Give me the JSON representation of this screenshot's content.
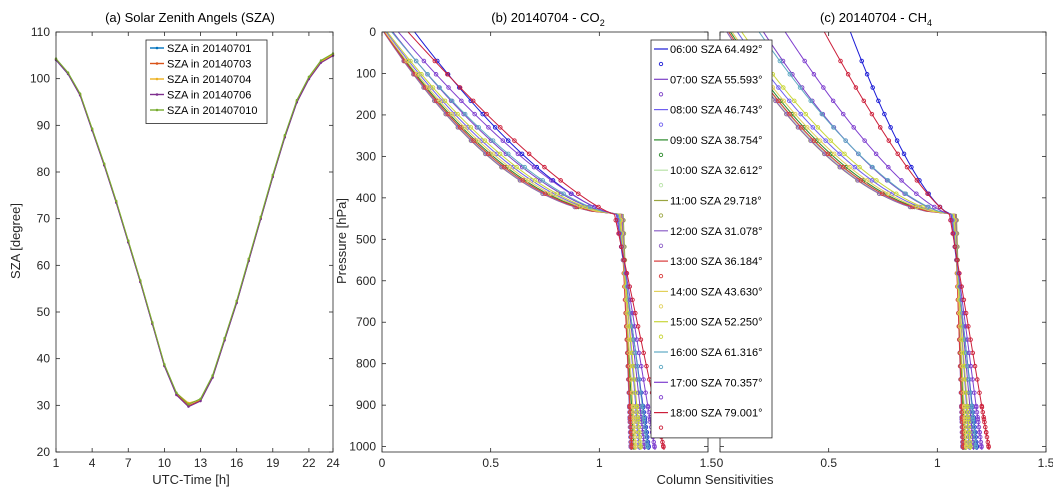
{
  "chart_data": [
    {
      "type": "line",
      "title": "(a) Solar Zenith Angels (SZA)",
      "xlabel": "UTC-Time [h]",
      "ylabel": "SZA [degree]",
      "xlim": [
        1,
        24
      ],
      "ylim": [
        20,
        110
      ],
      "xticks": [
        1,
        4,
        7,
        10,
        13,
        16,
        19,
        22,
        24
      ],
      "yticks": [
        20,
        30,
        40,
        50,
        60,
        70,
        80,
        90,
        100,
        110
      ],
      "legend_position": "top-right",
      "x": [
        1,
        2,
        3,
        4,
        5,
        6,
        7,
        8,
        9,
        10,
        11,
        12,
        13,
        14,
        15,
        16,
        17,
        18,
        19,
        20,
        21,
        22,
        23,
        24
      ],
      "series": [
        {
          "name": "SZA in 20140701",
          "color": "#0072bd",
          "values": [
            104.0,
            101.0,
            96.5,
            89.0,
            81.5,
            73.5,
            65.0,
            56.5,
            47.5,
            38.5,
            32.3,
            29.8,
            31.0,
            36.0,
            44.0,
            52.0,
            61.0,
            70.0,
            79.0,
            87.5,
            95.0,
            100.0,
            103.5,
            105.0
          ]
        },
        {
          "name": "SZA in 20140703",
          "color": "#d95319",
          "values": [
            104.1,
            101.1,
            96.6,
            89.1,
            81.6,
            73.6,
            65.1,
            56.6,
            47.6,
            38.6,
            32.4,
            29.9,
            31.1,
            36.1,
            44.1,
            52.1,
            61.1,
            70.1,
            79.1,
            87.6,
            95.1,
            100.1,
            103.6,
            105.1
          ]
        },
        {
          "name": "SZA in 20140704",
          "color": "#edb120",
          "values": [
            104.2,
            101.2,
            96.7,
            89.2,
            81.7,
            73.7,
            65.2,
            56.7,
            47.7,
            38.7,
            32.6,
            30.5,
            31.2,
            36.2,
            44.2,
            52.2,
            61.2,
            70.2,
            79.2,
            87.7,
            95.2,
            100.2,
            103.7,
            105.2
          ]
        },
        {
          "name": "SZA in 20140706",
          "color": "#7e2f8e",
          "values": [
            104.0,
            101.0,
            96.4,
            88.9,
            81.4,
            73.4,
            64.9,
            56.4,
            47.4,
            38.4,
            32.2,
            29.7,
            30.9,
            35.9,
            43.9,
            51.9,
            60.9,
            69.9,
            78.9,
            87.4,
            94.9,
            99.9,
            103.4,
            104.9
          ]
        },
        {
          "name": "SZA in 201407010",
          "color": "#77ac30",
          "values": [
            104.3,
            101.3,
            96.8,
            89.3,
            81.8,
            73.8,
            65.3,
            56.8,
            47.8,
            38.8,
            32.7,
            30.2,
            31.4,
            36.4,
            44.4,
            52.4,
            61.4,
            70.4,
            79.4,
            87.9,
            95.4,
            100.4,
            103.9,
            105.4
          ]
        }
      ]
    },
    {
      "type": "line",
      "title_main": "(b) 20140704 - CO",
      "title_sub": "2",
      "xlabel": "Column Sensitivities",
      "ylabel": "Pressure [hPa]",
      "xlim": [
        0,
        1.5
      ],
      "ylim": [
        1013,
        0
      ],
      "xticks": [
        0,
        0.5,
        1,
        1.5
      ],
      "yticks": [
        0,
        100,
        200,
        300,
        400,
        500,
        600,
        700,
        800,
        900,
        1000
      ],
      "y_reversed": true,
      "curve_model": "p = P0*(1-(x/Xs)^k) for x<Xs; x = Xs + B*(p-P0)/(1013-P0) for x>=Xs",
      "series": [
        {
          "name": "06:00 SZA 64.492°",
          "color": "#1b1bd6",
          "Xs": 1.08,
          "k": 3.2,
          "B": 0.15
        },
        {
          "name": "07:00 SZA 55.593°",
          "color": "#7b3fc6",
          "Xs": 1.09,
          "k": 3.5,
          "B": 0.12
        },
        {
          "name": "08:00 SZA 46.743°",
          "color": "#6f5ff0",
          "Xs": 1.095,
          "k": 3.8,
          "B": 0.09
        },
        {
          "name": "09:00 SZA 38.754°",
          "color": "#2a8a2a",
          "Xs": 1.1,
          "k": 4.1,
          "B": 0.06
        },
        {
          "name": "10:00 SZA 32.612°",
          "color": "#b9e3a8",
          "Xs": 1.105,
          "k": 4.3,
          "B": 0.045
        },
        {
          "name": "11:00 SZA 29.718°",
          "color": "#9aa540",
          "Xs": 1.11,
          "k": 4.4,
          "B": 0.04
        },
        {
          "name": "12:00 SZA 31.078°",
          "color": "#8e62c8",
          "Xs": 1.105,
          "k": 4.35,
          "B": 0.04
        },
        {
          "name": "13:00 SZA 36.184°",
          "color": "#d93a3a",
          "Xs": 1.1,
          "k": 4.2,
          "B": 0.05
        },
        {
          "name": "14:00 SZA 43.630°",
          "color": "#e2d05a",
          "Xs": 1.098,
          "k": 3.95,
          "B": 0.07
        },
        {
          "name": "15:00 SZA 52.250°",
          "color": "#c9d63a",
          "Xs": 1.092,
          "k": 3.65,
          "B": 0.1
        },
        {
          "name": "16:00 SZA 61.316°",
          "color": "#5fa9c4",
          "Xs": 1.085,
          "k": 3.35,
          "B": 0.14
        },
        {
          "name": "17:00 SZA 70.357°",
          "color": "#7f3fcf",
          "Xs": 1.078,
          "k": 3.05,
          "B": 0.18
        },
        {
          "name": "18:00 SZA 79.001°",
          "color": "#cc1f3a",
          "Xs": 1.07,
          "k": 2.75,
          "B": 0.23
        }
      ],
      "P0": 440,
      "near_zero_top": [
        0.15,
        0.05,
        0.02,
        0.012,
        0.01,
        0.008,
        0.008,
        0.01,
        0.014,
        0.025,
        0.045,
        0.075,
        0.12
      ]
    },
    {
      "type": "line",
      "title_main": "(c) 20140704 - CH",
      "title_sub": "4",
      "xlabel": "Column Sensitivities",
      "xlim": [
        0,
        1.5
      ],
      "ylim": [
        1013,
        0
      ],
      "xticks": [
        0,
        0.5,
        1,
        1.5
      ],
      "y_reversed": true,
      "series_same_as_b": true,
      "P0": 440,
      "scale": 0.8
    }
  ]
}
